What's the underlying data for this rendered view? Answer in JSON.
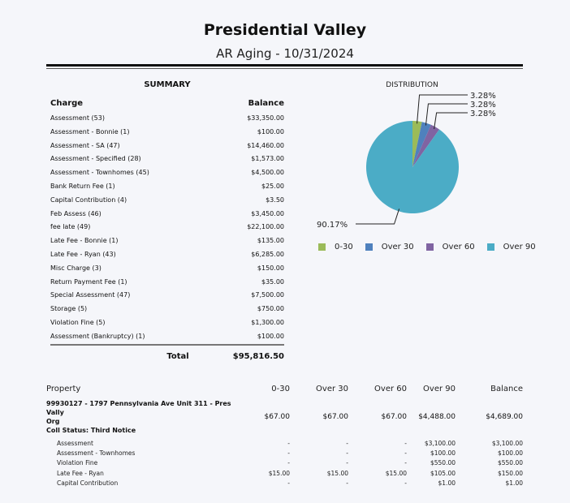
{
  "header": {
    "title": "Presidential Valley",
    "subtitle": "AR Aging - 10/31/2024"
  },
  "summary": {
    "title": "SUMMARY",
    "col_charge": "Charge",
    "col_balance": "Balance",
    "rows": [
      {
        "charge": "Assessment (53)",
        "balance": "$33,350.00"
      },
      {
        "charge": "Assessment - Bonnie (1)",
        "balance": "$100.00"
      },
      {
        "charge": "Assessment - SA (47)",
        "balance": "$14,460.00"
      },
      {
        "charge": "Assessment - Specified (28)",
        "balance": "$1,573.00"
      },
      {
        "charge": "Assessment - Townhomes (45)",
        "balance": "$4,500.00"
      },
      {
        "charge": "Bank Return Fee (1)",
        "balance": "$25.00"
      },
      {
        "charge": "Capital Contribution (4)",
        "balance": "$3.50"
      },
      {
        "charge": "Feb Assess (46)",
        "balance": "$3,450.00"
      },
      {
        "charge": "fee late (49)",
        "balance": "$22,100.00"
      },
      {
        "charge": "Late Fee - Bonnie (1)",
        "balance": "$135.00"
      },
      {
        "charge": "Late Fee - Ryan (43)",
        "balance": "$6,285.00"
      },
      {
        "charge": "Misc Charge (3)",
        "balance": "$150.00"
      },
      {
        "charge": "Return Payment Fee (1)",
        "balance": "$35.00"
      },
      {
        "charge": "Special Assessment (47)",
        "balance": "$7,500.00"
      },
      {
        "charge": "Storage (5)",
        "balance": "$750.00"
      },
      {
        "charge": "Violation Fine (5)",
        "balance": "$1,300.00"
      },
      {
        "charge": "Assessment (Bankruptcy) (1)",
        "balance": "$100.00"
      }
    ],
    "total_label": "Total",
    "total_value": "$95,816.50"
  },
  "chart_data": {
    "type": "pie",
    "title": "DISTRIBUTION",
    "categories": [
      "0-30",
      "Over 30",
      "Over 60",
      "Over 90"
    ],
    "values": [
      3.28,
      3.28,
      3.28,
      90.17
    ],
    "labels": [
      "3.28%",
      "3.28%",
      "3.28%",
      "90.17%"
    ],
    "colors": [
      "#9bbb59",
      "#4f81bd",
      "#8064a2",
      "#4bacc6"
    ],
    "legend": "bottom"
  },
  "property_table": {
    "headers": [
      "Property",
      "0-30",
      "Over 30",
      "Over 60",
      "Over 90",
      "Balance"
    ],
    "property": {
      "line1": "99930127 - 1797 Pennsylvania Ave Unit 311 - Pres Vally",
      "line2": "Org",
      "line3": "Coll Status: Third Notice",
      "values": [
        "$67.00",
        "$67.00",
        "$67.00",
        "$4,488.00",
        "$4,689.00"
      ]
    },
    "details": [
      {
        "charge": "Assessment",
        "values": [
          "-",
          "-",
          "-",
          "$3,100.00",
          "$3,100.00"
        ]
      },
      {
        "charge": "Assessment - Townhomes",
        "values": [
          "-",
          "-",
          "-",
          "$100.00",
          "$100.00"
        ]
      },
      {
        "charge": "Violation Fine",
        "values": [
          "-",
          "-",
          "-",
          "$550.00",
          "$550.00"
        ]
      },
      {
        "charge": "Late Fee - Ryan",
        "values": [
          "$15.00",
          "$15.00",
          "$15.00",
          "$105.00",
          "$150.00"
        ]
      },
      {
        "charge": "Capital Contribution",
        "values": [
          "-",
          "-",
          "-",
          "$1.00",
          "$1.00"
        ]
      }
    ]
  }
}
